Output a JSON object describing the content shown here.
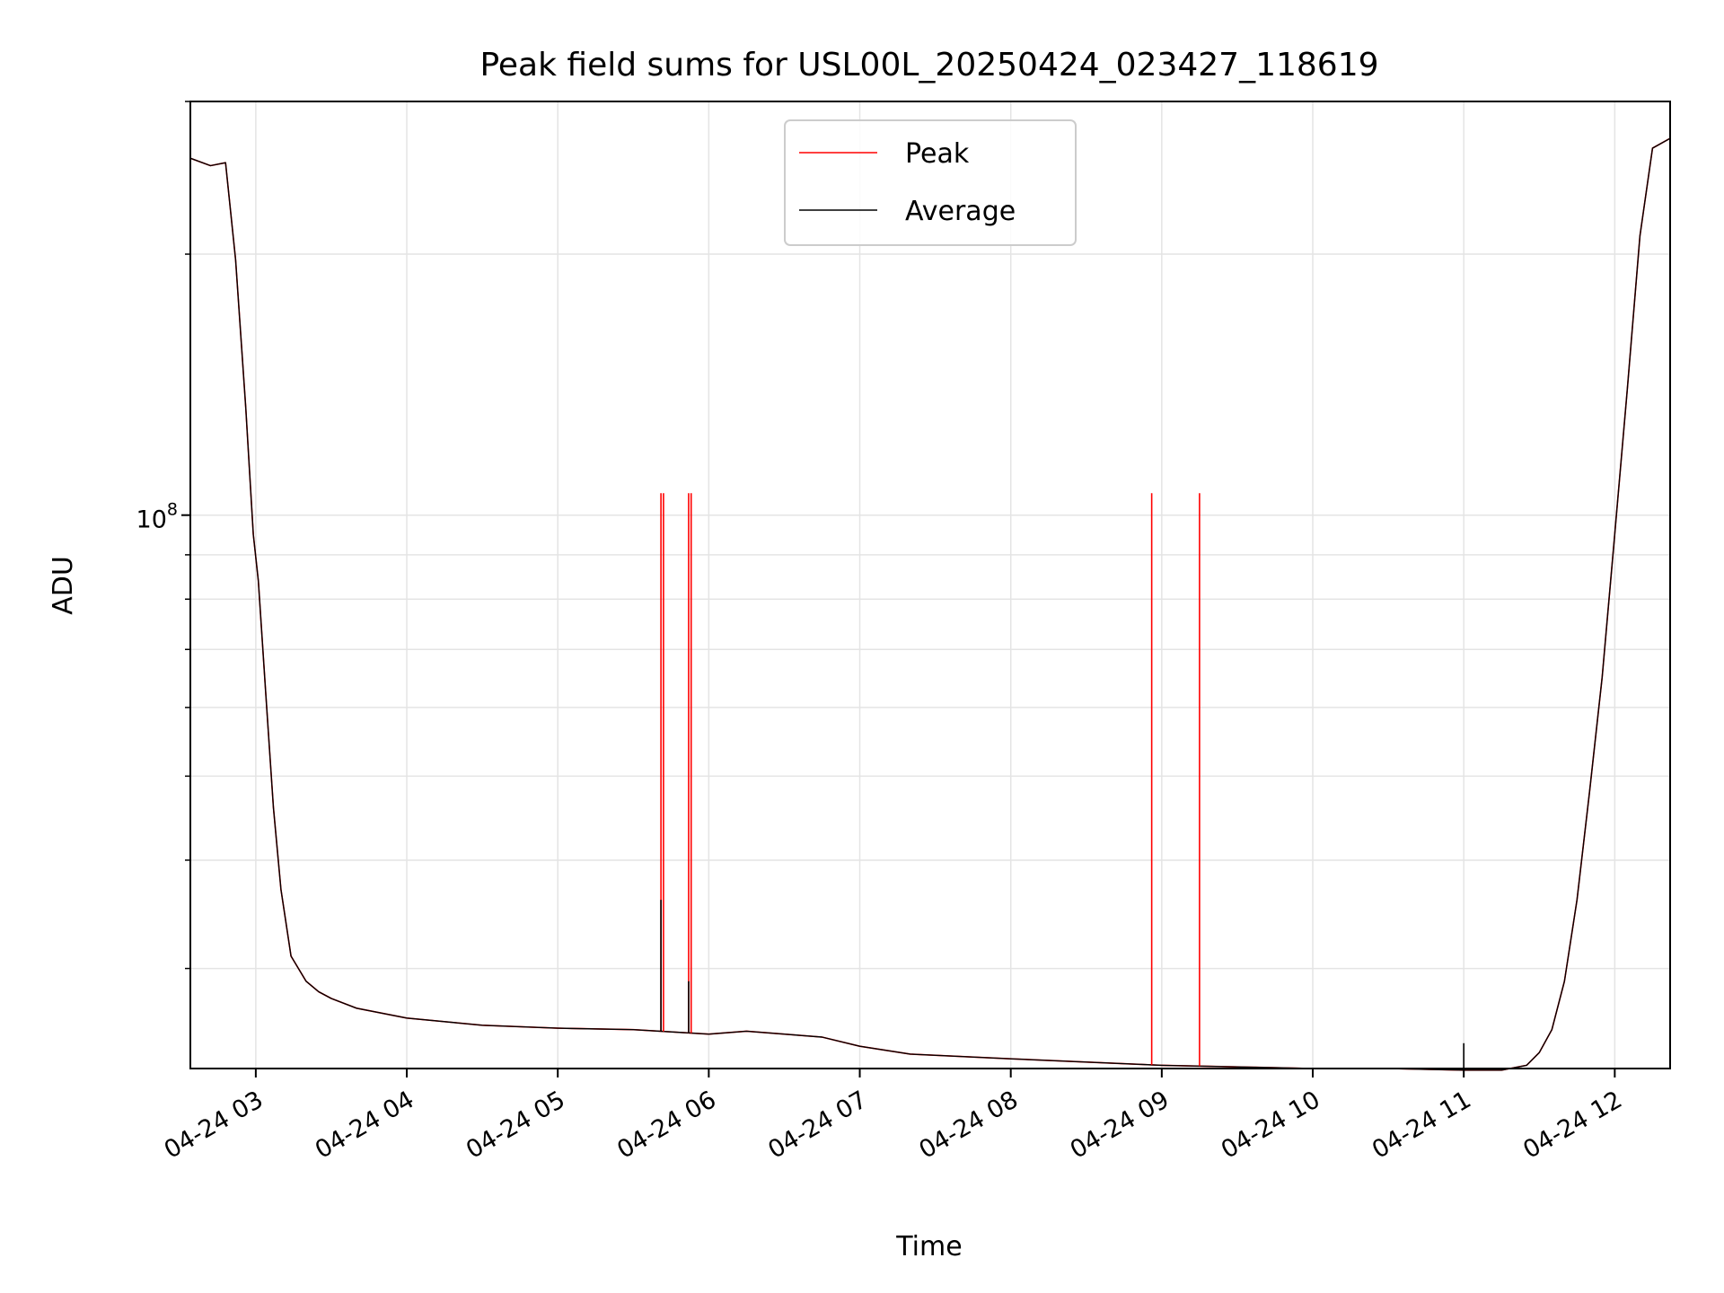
{
  "chart_data": {
    "type": "line",
    "title": "Peak field sums for USL00L_20250424_023427_118619",
    "xlabel": "Time",
    "ylabel": "ADU",
    "y_scale": "log",
    "ylim": [
      23000000,
      300000000
    ],
    "xlim": [
      "2025-04-24 02:34",
      "2025-04-24 12:22"
    ],
    "grid": true,
    "legend_position": "top-center",
    "x_ticks": [
      {
        "value": "2025-04-24 03:00",
        "label": "04-24 03"
      },
      {
        "value": "2025-04-24 04:00",
        "label": "04-24 04"
      },
      {
        "value": "2025-04-24 05:00",
        "label": "04-24 05"
      },
      {
        "value": "2025-04-24 06:00",
        "label": "04-24 06"
      },
      {
        "value": "2025-04-24 07:00",
        "label": "04-24 07"
      },
      {
        "value": "2025-04-24 08:00",
        "label": "04-24 08"
      },
      {
        "value": "2025-04-24 09:00",
        "label": "04-24 09"
      },
      {
        "value": "2025-04-24 10:00",
        "label": "04-24 10"
      },
      {
        "value": "2025-04-24 11:00",
        "label": "04-24 11"
      },
      {
        "value": "2025-04-24 12:00",
        "label": "04-24 12"
      }
    ],
    "y_major_ticks": [
      {
        "value": 100000000,
        "label_base": "10",
        "label_exp": "8"
      }
    ],
    "y_minor_ticks": [
      30000000,
      40000000,
      50000000,
      60000000,
      70000000,
      80000000,
      90000000,
      200000000,
      300000000
    ],
    "series": [
      {
        "name": "Peak",
        "color": "#ff0000",
        "x": [
          "2025-04-24 02:34",
          "2025-04-24 02:42",
          "2025-04-24 02:48",
          "2025-04-24 02:52",
          "2025-04-24 02:56",
          "2025-04-24 02:59",
          "2025-04-24 03:01",
          "2025-04-24 03:04",
          "2025-04-24 03:07",
          "2025-04-24 03:10",
          "2025-04-24 03:14",
          "2025-04-24 03:20",
          "2025-04-24 03:25",
          "2025-04-24 03:30",
          "2025-04-24 03:40",
          "2025-04-24 04:00",
          "2025-04-24 04:30",
          "2025-04-24 05:00",
          "2025-04-24 05:30",
          "2025-04-24 06:00",
          "2025-04-24 06:15",
          "2025-04-24 06:30",
          "2025-04-24 06:45",
          "2025-04-24 07:00",
          "2025-04-24 07:20",
          "2025-04-24 08:00",
          "2025-04-24 08:30",
          "2025-04-24 09:00",
          "2025-04-24 09:30",
          "2025-04-24 10:00",
          "2025-04-24 10:30",
          "2025-04-24 11:00",
          "2025-04-24 11:15",
          "2025-04-24 11:25",
          "2025-04-24 11:30",
          "2025-04-24 11:35",
          "2025-04-24 11:40",
          "2025-04-24 11:45",
          "2025-04-24 11:50",
          "2025-04-24 11:55",
          "2025-04-24 12:00",
          "2025-04-24 12:05",
          "2025-04-24 12:10",
          "2025-04-24 12:15",
          "2025-04-24 12:22"
        ],
        "y": [
          258000000,
          253000000,
          255000000,
          197000000,
          133000000,
          95000000,
          84000000,
          62000000,
          46000000,
          37000000,
          31000000,
          29000000,
          28200000,
          27700000,
          27000000,
          26300000,
          25800000,
          25600000,
          25500000,
          25200000,
          25400000,
          25200000,
          25000000,
          24400000,
          23900000,
          23600000,
          23400000,
          23200000,
          23100000,
          23000000,
          23000000,
          22900000,
          22900000,
          23200000,
          24000000,
          25500000,
          29000000,
          36000000,
          48000000,
          65000000,
          95000000,
          140000000,
          210000000,
          265000000,
          272000000
        ]
      },
      {
        "name": "Average",
        "color": "#000000",
        "x": [
          "2025-04-24 02:34",
          "2025-04-24 02:42",
          "2025-04-24 02:48",
          "2025-04-24 02:52",
          "2025-04-24 02:56",
          "2025-04-24 02:59",
          "2025-04-24 03:01",
          "2025-04-24 03:04",
          "2025-04-24 03:07",
          "2025-04-24 03:10",
          "2025-04-24 03:14",
          "2025-04-24 03:20",
          "2025-04-24 03:25",
          "2025-04-24 03:30",
          "2025-04-24 03:40",
          "2025-04-24 04:00",
          "2025-04-24 04:30",
          "2025-04-24 05:00",
          "2025-04-24 05:30",
          "2025-04-24 06:00",
          "2025-04-24 06:15",
          "2025-04-24 06:30",
          "2025-04-24 06:45",
          "2025-04-24 07:00",
          "2025-04-24 07:20",
          "2025-04-24 08:00",
          "2025-04-24 08:30",
          "2025-04-24 09:00",
          "2025-04-24 09:30",
          "2025-04-24 10:00",
          "2025-04-24 10:30",
          "2025-04-24 11:00",
          "2025-04-24 11:15",
          "2025-04-24 11:25",
          "2025-04-24 11:30",
          "2025-04-24 11:35",
          "2025-04-24 11:40",
          "2025-04-24 11:45",
          "2025-04-24 11:50",
          "2025-04-24 11:55",
          "2025-04-24 12:00",
          "2025-04-24 12:05",
          "2025-04-24 12:10",
          "2025-04-24 12:15",
          "2025-04-24 12:22"
        ],
        "y": [
          258000000,
          253000000,
          255000000,
          197000000,
          133000000,
          95000000,
          84000000,
          62000000,
          46000000,
          37000000,
          31000000,
          29000000,
          28200000,
          27700000,
          27000000,
          26300000,
          25800000,
          25600000,
          25500000,
          25200000,
          25400000,
          25200000,
          25000000,
          24400000,
          23900000,
          23600000,
          23400000,
          23200000,
          23100000,
          23000000,
          23000000,
          22900000,
          22900000,
          23200000,
          24000000,
          25500000,
          29000000,
          36000000,
          48000000,
          65000000,
          95000000,
          140000000,
          210000000,
          265000000,
          272000000
        ]
      }
    ],
    "spikes": [
      {
        "series": "Peak",
        "x": "2025-04-24 05:41",
        "y": 106000000
      },
      {
        "series": "Peak",
        "x": "2025-04-24 05:42",
        "y": 106000000
      },
      {
        "series": "Peak",
        "x": "2025-04-24 05:52",
        "y": 106000000
      },
      {
        "series": "Peak",
        "x": "2025-04-24 05:53",
        "y": 106000000
      },
      {
        "series": "Peak",
        "x": "2025-04-24 08:56",
        "y": 106000000
      },
      {
        "series": "Peak",
        "x": "2025-04-24 09:15",
        "y": 106000000
      },
      {
        "series": "Average",
        "x": "2025-04-24 05:41",
        "y": 36000000
      },
      {
        "series": "Average",
        "x": "2025-04-24 05:52",
        "y": 29000000
      },
      {
        "series": "Average",
        "x": "2025-04-24 11:00",
        "y": 24600000
      }
    ]
  }
}
